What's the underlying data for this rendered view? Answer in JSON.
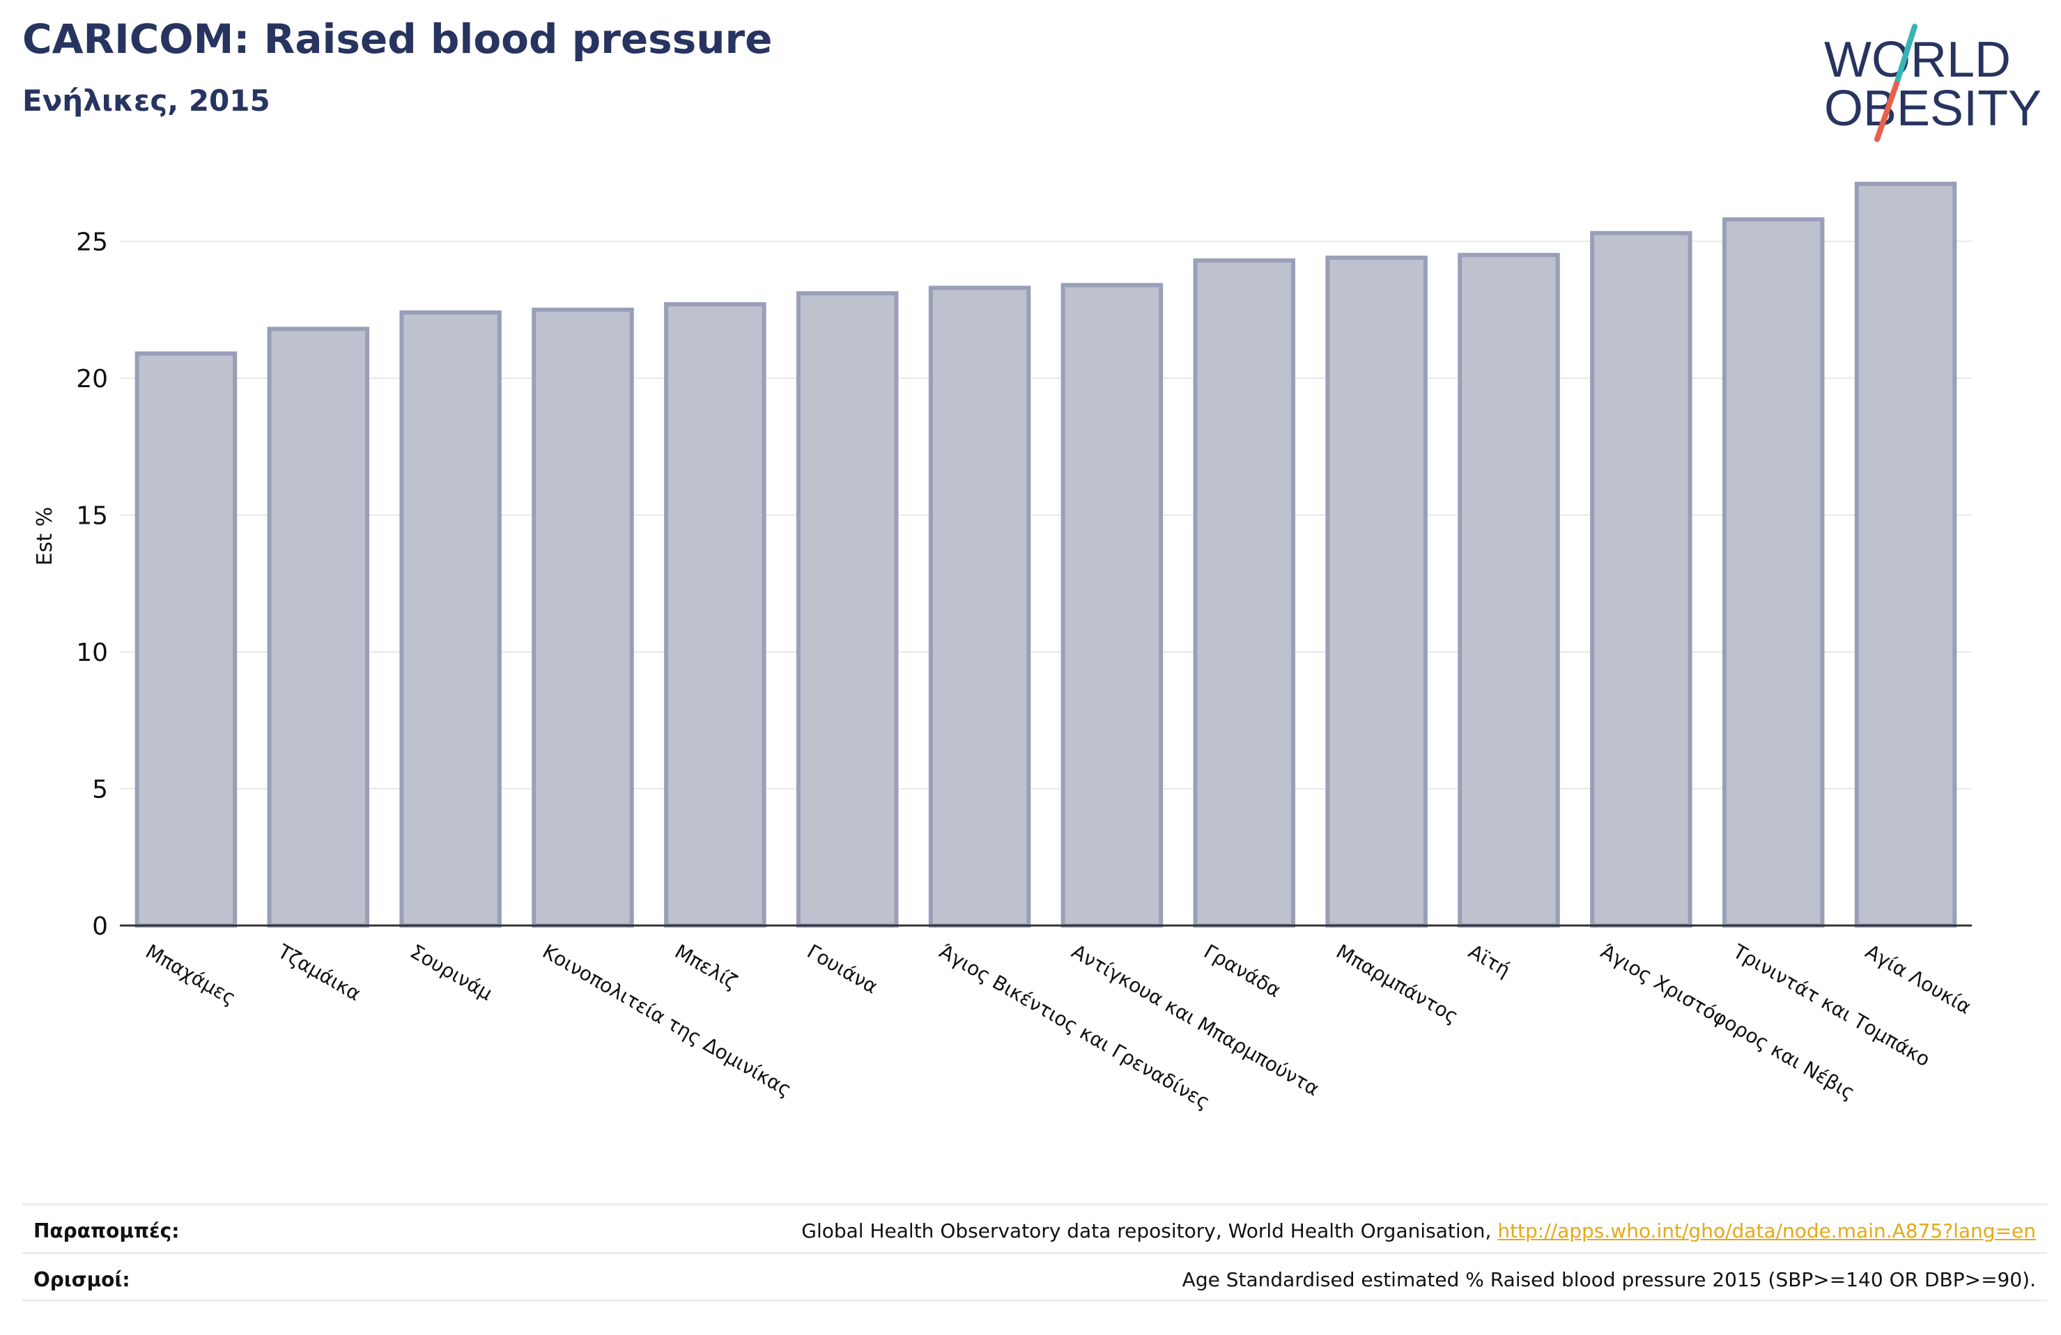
{
  "header": {
    "title": "CARICOM: Raised blood pressure",
    "subtitle": "Ενήλικες, 2015"
  },
  "logo": {
    "line1": "WORLD",
    "line2": "OBESITY",
    "colors": {
      "text": "#273460",
      "slash_teal": "#35b5b5",
      "slash_red": "#e8604c"
    }
  },
  "chart_data": {
    "type": "bar",
    "ylabel": "Est %",
    "ylim": [
      0,
      28
    ],
    "yticks": [
      "0",
      "5",
      "10",
      "15",
      "20",
      "25"
    ],
    "grid": true,
    "bar_fill": "#bec1ce",
    "bar_stroke": "#9a9fb8",
    "categories": [
      "Μπαχάμες",
      "Τζαμάικα",
      "Σουρινάμ",
      "Κοινοπολιτεία της Δομινίκας",
      "Μπελίζ",
      "Γουιάνα",
      "Άγιος Βικέντιος και Γρεναδίνες",
      "Αντίγκουα και Μπαρμπούντα",
      "Γρανάδα",
      "Μπαρμπάντος",
      "Αϊτή",
      "Άγιος Χριστόφορος και Νέβις",
      "Τρινιντάτ και Τομπάκο",
      "Αγία Λουκία"
    ],
    "values": [
      20.9,
      21.8,
      22.4,
      22.5,
      22.7,
      23.1,
      23.3,
      23.4,
      24.3,
      24.4,
      24.5,
      25.3,
      25.8,
      27.1
    ]
  },
  "footer": {
    "references_label": "Παραπομπές:",
    "references_text": "Global Health Observatory data repository, World Health Organisation, ",
    "references_link": "http://apps.who.int/gho/data/node.main.A875?lang=en",
    "definitions_label": "Ορισμοί:",
    "definitions_text": "Age Standardised estimated % Raised blood pressure 2015 (SBP>=140 OR DBP>=90)."
  }
}
